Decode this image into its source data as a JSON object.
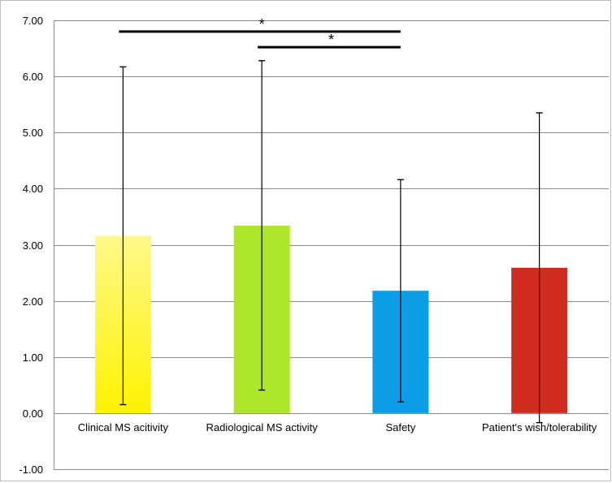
{
  "chart_data": {
    "type": "bar",
    "categories": [
      "Clinical MS acitivity",
      "Radiological MS activity",
      "Safety",
      "Patient's wish/tolerability"
    ],
    "values": [
      3.16,
      3.34,
      2.18,
      2.59
    ],
    "error_low": [
      0.15,
      0.41,
      0.2,
      -0.17
    ],
    "error_high": [
      6.17,
      6.28,
      4.16,
      5.35
    ],
    "bar_colors": [
      [
        "#fff98a",
        "#fff200"
      ],
      [
        "#aee62b",
        "#aee62b"
      ],
      [
        "#0b9ee6",
        "#0b9ee6"
      ],
      [
        "#d02b1f",
        "#d02b1f"
      ]
    ],
    "ylim": [
      -1,
      7
    ],
    "yticks": [
      "7.00",
      "6.00",
      "5.00",
      "4.00",
      "3.00",
      "2.00",
      "1.00",
      "0.00",
      "-1.00"
    ],
    "ytick_values": [
      7,
      6,
      5,
      4,
      3,
      2,
      1,
      0,
      -1
    ],
    "title": "",
    "xlabel": "",
    "ylabel": "",
    "grid": true,
    "legend": false,
    "significance": [
      {
        "from": 0,
        "to": 2,
        "y": 6.8,
        "label": "*"
      },
      {
        "from": 1,
        "to": 2,
        "y": 6.52,
        "label": "*"
      }
    ]
  }
}
